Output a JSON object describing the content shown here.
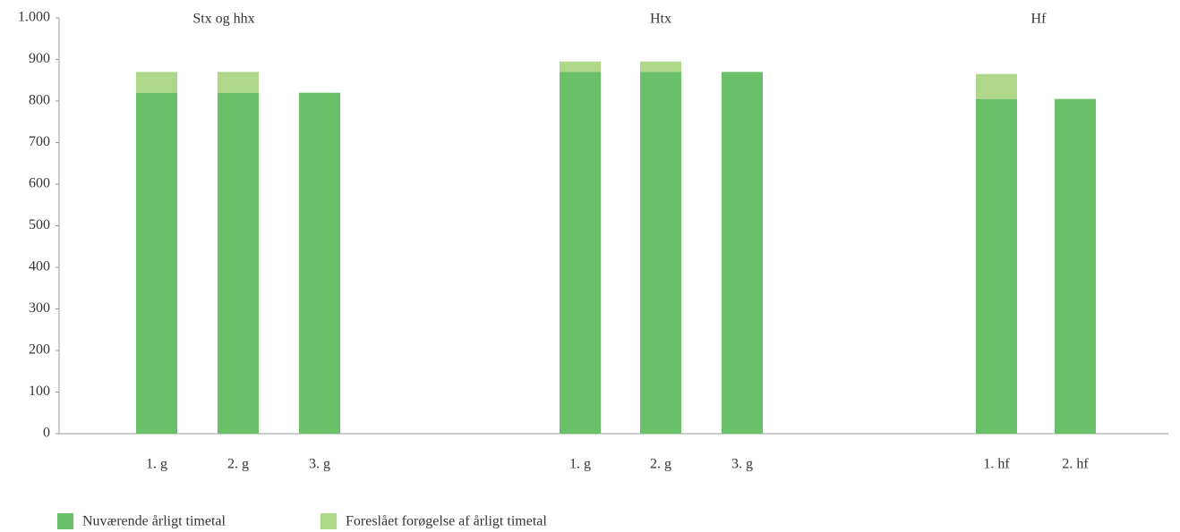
{
  "chart_data": {
    "type": "stacked-bar",
    "groups": [
      {
        "label": "Stx og hhx",
        "categories": [
          "1. g",
          "2. g",
          "3. g"
        ]
      },
      {
        "label": "Htx",
        "categories": [
          "1. g",
          "2. g",
          "3. g"
        ]
      },
      {
        "label": "Hf",
        "categories": [
          "1. hf",
          "2. hf"
        ]
      }
    ],
    "series": [
      {
        "name": "Nuværende årligt timetal",
        "color": "#6abf69",
        "values": [
          820,
          820,
          820,
          870,
          870,
          870,
          805,
          805
        ]
      },
      {
        "name": "Foreslået forøgelse af årligt timetal",
        "color": "#aed78a",
        "values": [
          50,
          50,
          null,
          25,
          25,
          null,
          60,
          null
        ]
      }
    ],
    "ylim": [
      0,
      1000
    ],
    "yticks": [
      0,
      100,
      200,
      300,
      400,
      500,
      600,
      700,
      800,
      900,
      {
        "value": 1000,
        "label": "1.000"
      }
    ],
    "grid": false,
    "legend": "bottom"
  }
}
